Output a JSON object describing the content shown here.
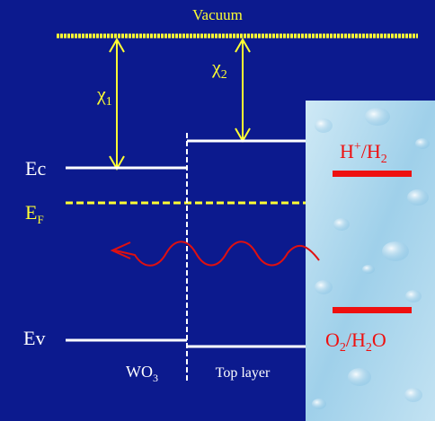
{
  "title": "Vacuum",
  "chi_1": [
    "χ",
    "1"
  ],
  "chi_2": [
    "χ",
    "2"
  ],
  "levels": {
    "ec": "Ec",
    "ef": [
      "E",
      "F"
    ],
    "ev": "Ev"
  },
  "layers": {
    "wo3": [
      "WO",
      "3"
    ],
    "top": "Top layer"
  },
  "couples": {
    "h": [
      "H",
      "+",
      "/H",
      "2"
    ],
    "o": [
      "O",
      "2",
      "/H",
      "2",
      "O"
    ]
  }
}
